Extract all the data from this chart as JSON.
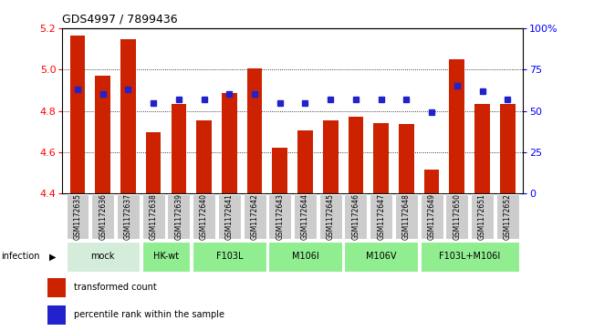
{
  "title": "GDS4997 / 7899436",
  "samples": [
    "GSM1172635",
    "GSM1172636",
    "GSM1172637",
    "GSM1172638",
    "GSM1172639",
    "GSM1172640",
    "GSM1172641",
    "GSM1172642",
    "GSM1172643",
    "GSM1172644",
    "GSM1172645",
    "GSM1172646",
    "GSM1172647",
    "GSM1172648",
    "GSM1172649",
    "GSM1172650",
    "GSM1172651",
    "GSM1172652"
  ],
  "bar_values": [
    5.165,
    4.97,
    5.145,
    4.695,
    4.835,
    4.755,
    4.885,
    5.005,
    4.62,
    4.705,
    4.755,
    4.77,
    4.74,
    4.735,
    4.515,
    5.05,
    4.835,
    4.835
  ],
  "percentile_values": [
    63,
    60,
    63,
    55,
    57,
    57,
    60,
    60,
    55,
    55,
    57,
    57,
    57,
    57,
    49,
    65,
    62,
    57
  ],
  "group_info": [
    {
      "label": "mock",
      "indices": [
        0,
        1,
        2
      ],
      "color": "#d4edda"
    },
    {
      "label": "HK-wt",
      "indices": [
        3,
        4
      ],
      "color": "#90EE90"
    },
    {
      "label": "F103L",
      "indices": [
        5,
        6,
        7
      ],
      "color": "#90EE90"
    },
    {
      "label": "M106I",
      "indices": [
        8,
        9,
        10
      ],
      "color": "#90EE90"
    },
    {
      "label": "M106V",
      "indices": [
        11,
        12,
        13
      ],
      "color": "#90EE90"
    },
    {
      "label": "F103L+M106I",
      "indices": [
        14,
        15,
        16,
        17
      ],
      "color": "#90EE90"
    }
  ],
  "bar_color": "#cc2200",
  "dot_color": "#2222cc",
  "ylim_left": [
    4.4,
    5.2
  ],
  "ylim_right": [
    0,
    100
  ],
  "yticks_left": [
    4.4,
    4.6,
    4.8,
    5.0,
    5.2
  ],
  "yticks_right": [
    0,
    25,
    50,
    75,
    100
  ],
  "ytick_labels_right": [
    "0",
    "25",
    "50",
    "75",
    "100%"
  ],
  "grid_lines": [
    4.6,
    4.8,
    5.0
  ],
  "infection_label": "infection",
  "legend_bar_label": "transformed count",
  "legend_dot_label": "percentile rank within the sample",
  "bg_color": "#ffffff",
  "sample_box_color": "#cccccc",
  "title_fontsize": 9,
  "axis_fontsize": 8,
  "sample_fontsize": 5.5,
  "group_fontsize": 7,
  "legend_fontsize": 7,
  "infection_fontsize": 7
}
